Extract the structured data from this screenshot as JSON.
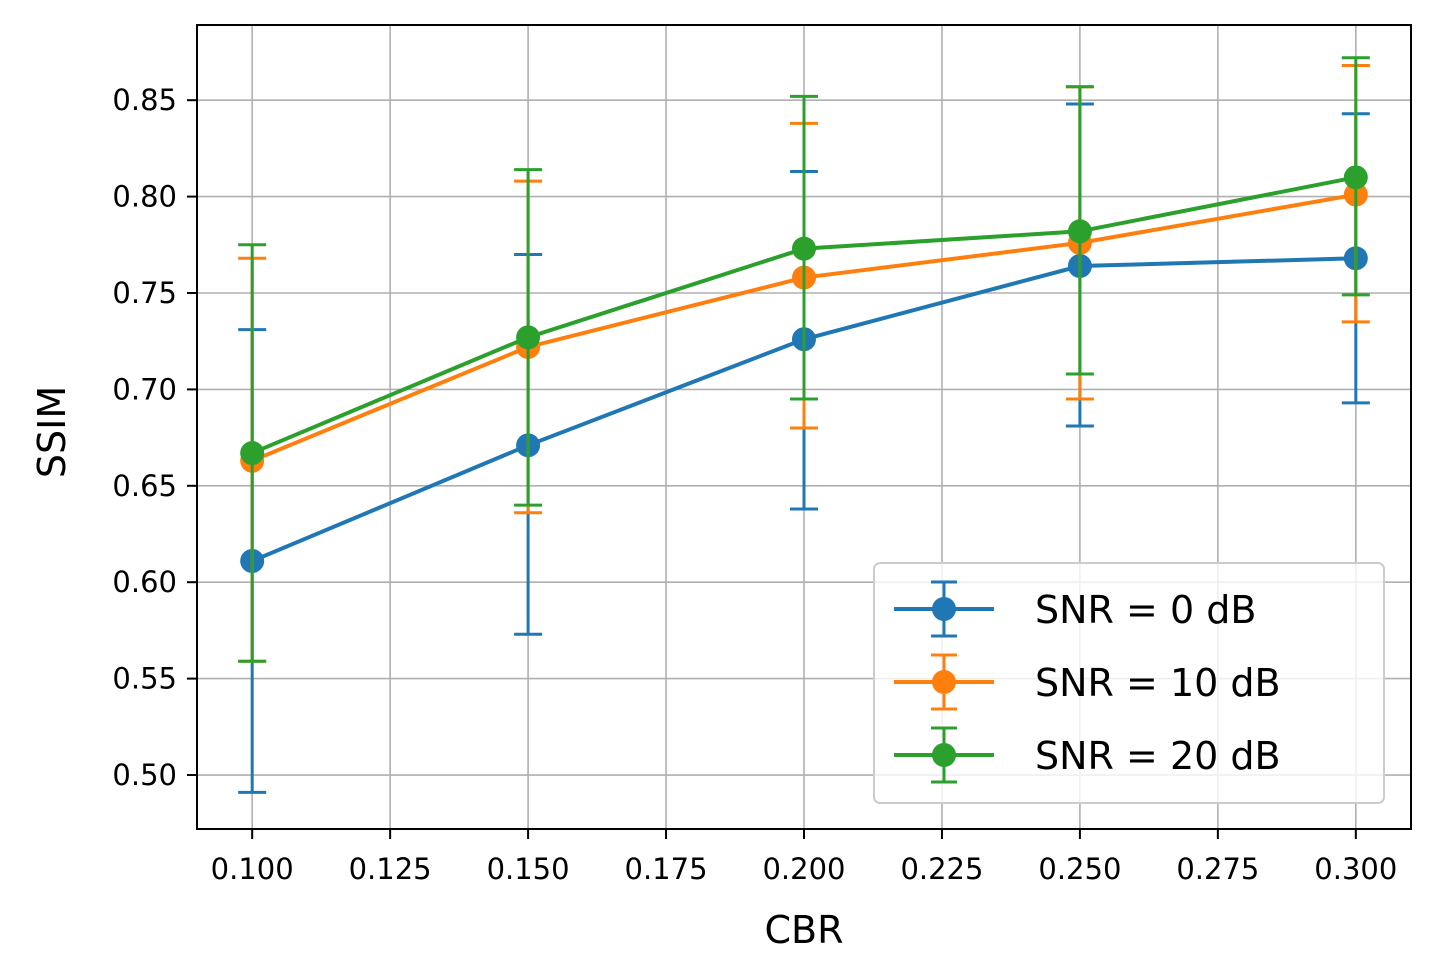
{
  "chart_data": {
    "type": "line",
    "xlabel": "CBR",
    "ylabel": "SSIM",
    "xlim": [
      0.09,
      0.31
    ],
    "ylim": [
      0.472,
      0.889
    ],
    "xticks": [
      "0.100",
      "0.125",
      "0.150",
      "0.175",
      "0.200",
      "0.225",
      "0.250",
      "0.275",
      "0.300"
    ],
    "xtick_values": [
      0.1,
      0.125,
      0.15,
      0.175,
      0.2,
      0.225,
      0.25,
      0.275,
      0.3
    ],
    "yticks": [
      "0.50",
      "0.55",
      "0.60",
      "0.65",
      "0.70",
      "0.75",
      "0.80",
      "0.85"
    ],
    "ytick_values": [
      0.5,
      0.55,
      0.6,
      0.65,
      0.7,
      0.75,
      0.8,
      0.85
    ],
    "grid": true,
    "legend_position": "lower-right",
    "x": [
      0.1,
      0.15,
      0.2,
      0.25,
      0.3
    ],
    "series": [
      {
        "name": "SNR = 0 dB",
        "color": "#1f77b4",
        "values": [
          0.611,
          0.671,
          0.726,
          0.764,
          0.768
        ],
        "err_low": [
          0.491,
          0.573,
          0.638,
          0.681,
          0.693
        ],
        "err_high": [
          0.731,
          0.77,
          0.813,
          0.848,
          0.843
        ]
      },
      {
        "name": "SNR = 10 dB",
        "color": "#ff7f0e",
        "values": [
          0.663,
          0.722,
          0.758,
          0.776,
          0.801
        ],
        "err_low": [
          0.559,
          0.636,
          0.68,
          0.695,
          0.735
        ],
        "err_high": [
          0.768,
          0.808,
          0.838,
          0.857,
          0.868
        ]
      },
      {
        "name": "SNR = 20 dB",
        "color": "#2ca02c",
        "values": [
          0.667,
          0.727,
          0.773,
          0.782,
          0.81
        ],
        "err_low": [
          0.559,
          0.64,
          0.695,
          0.708,
          0.749
        ],
        "err_high": [
          0.775,
          0.814,
          0.852,
          0.857,
          0.872
        ]
      }
    ]
  }
}
